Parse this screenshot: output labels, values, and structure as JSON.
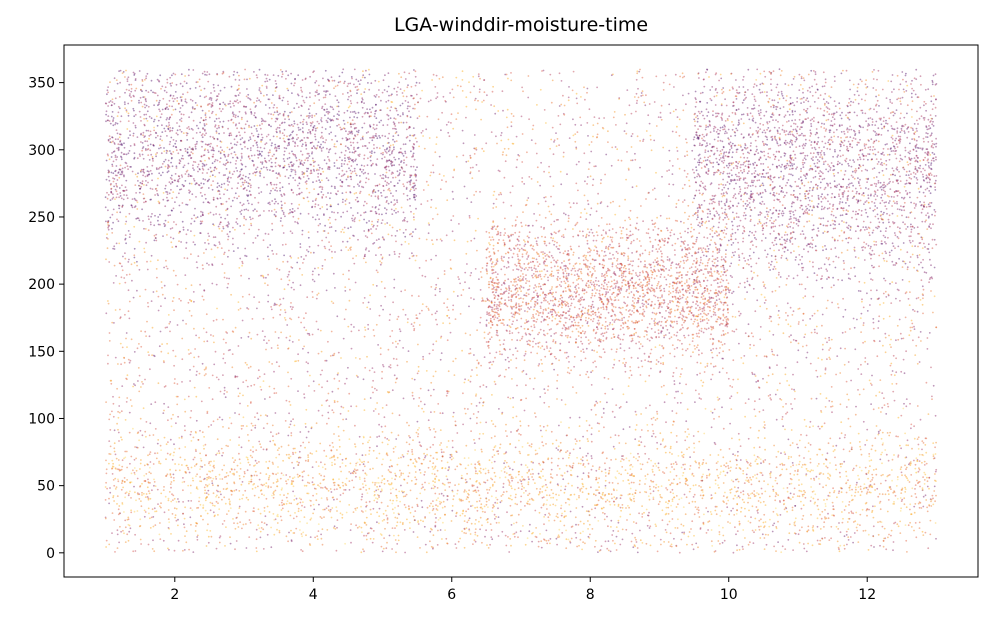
{
  "chart_data": {
    "type": "scatter",
    "title": "LGA-winddir-moisture-time",
    "xlabel": "",
    "ylabel": "",
    "xlim": [
      0.4,
      13.6
    ],
    "ylim": [
      -18,
      378
    ],
    "x_ticks": [
      2,
      4,
      6,
      8,
      10,
      12
    ],
    "y_ticks": [
      0,
      50,
      100,
      150,
      200,
      250,
      300,
      350
    ],
    "x_tick_labels": [
      "2",
      "4",
      "6",
      "8",
      "10",
      "12"
    ],
    "y_tick_labels": [
      "0",
      "50",
      "100",
      "150",
      "200",
      "250",
      "300",
      "350"
    ],
    "grid": false,
    "legend": "none",
    "colormap": [
      "#fcffa4",
      "#fca50a",
      "#dd513a",
      "#932667",
      "#420a68"
    ],
    "color_variable": "moisture",
    "x_range_of_points": [
      1,
      13
    ],
    "y_range_of_points": [
      0,
      360
    ],
    "density_bands": [
      {
        "x": [
          1,
          5.5
        ],
        "y_center": 300,
        "y_spread": 35,
        "moisture": 0.85
      },
      {
        "x": [
          9.5,
          13
        ],
        "y_center": 285,
        "y_spread": 40,
        "moisture": 0.8
      },
      {
        "x": [
          6.5,
          10
        ],
        "y_center": 195,
        "y_spread": 25,
        "moisture": 0.55
      },
      {
        "x": [
          1,
          13
        ],
        "y_center": 50,
        "y_spread": 20,
        "moisture": 0.3
      }
    ]
  }
}
